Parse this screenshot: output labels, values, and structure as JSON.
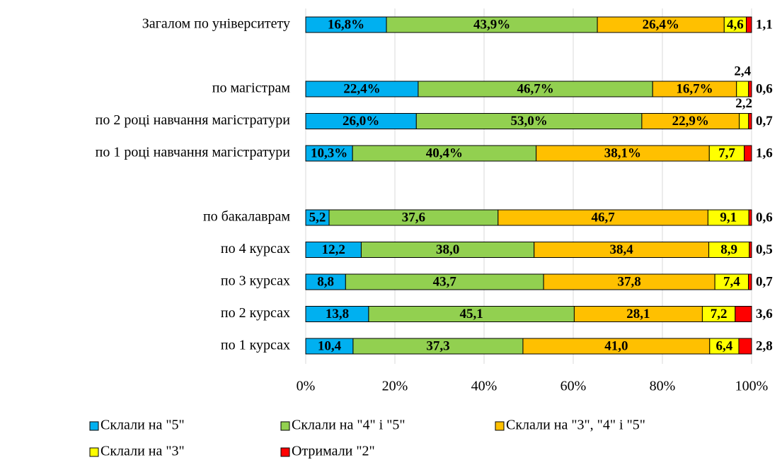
{
  "chart_data": {
    "type": "bar",
    "orientation": "horizontal",
    "stacking": "percent",
    "categories": [
      "Загалом по університету",
      null,
      "по магістрам",
      "по 2 році навчання магістратури",
      "по 1 році навчання магістратури",
      null,
      "по бакалаврам",
      "по 4 курсах",
      "по 3 курсах",
      "по 2 курсах",
      "по 1 курсах"
    ],
    "series": [
      {
        "name": "Склали на \"5\"",
        "color": "#00b0f0",
        "values": [
          16.8,
          null,
          22.4,
          26.0,
          10.3,
          null,
          5.2,
          12.2,
          8.8,
          13.8,
          10.4
        ],
        "value_labels": [
          "16,8%",
          null,
          "22,4%",
          "26,0%",
          "10,3%",
          null,
          "5,2",
          "12,2",
          "8,8",
          "13,8",
          "10,4"
        ]
      },
      {
        "name": "Склали на \"4\" і \"5\"",
        "color": "#92d050",
        "values": [
          43.9,
          null,
          46.7,
          53.0,
          40.4,
          null,
          37.6,
          38.0,
          43.7,
          45.1,
          37.3
        ],
        "value_labels": [
          "43,9%",
          null,
          "46,7%",
          "53,0%",
          "40,4%",
          null,
          "37,6",
          "38,0",
          "43,7",
          "45,1",
          "37,3"
        ]
      },
      {
        "name": "Склали на \"3\", \"4\" і \"5\"",
        "color": "#ffc000",
        "values": [
          26.4,
          null,
          16.7,
          22.9,
          38.1,
          null,
          46.7,
          38.4,
          37.8,
          28.1,
          41.0
        ],
        "value_labels": [
          "26,4%",
          null,
          "16,7%",
          "22,9%",
          "38,1%",
          null,
          "46,7",
          "38,4",
          "37,8",
          "28,1",
          "41,0"
        ]
      },
      {
        "name": "Склали на \"3\"",
        "color": "#ffff00",
        "values": [
          4.6,
          null,
          2.4,
          2.2,
          7.7,
          null,
          9.1,
          8.9,
          7.4,
          7.2,
          6.4
        ],
        "value_labels": [
          "4,6",
          null,
          "2,4",
          "2,2",
          "7,7",
          null,
          "9,1",
          "8,9",
          "7,4",
          "7,2",
          "6,4"
        ]
      },
      {
        "name": "Отримали \"2\"",
        "color": "#ff0000",
        "values": [
          1.1,
          null,
          0.6,
          0.7,
          1.6,
          null,
          0.6,
          0.5,
          0.7,
          3.6,
          2.8
        ],
        "value_labels": [
          "1,1",
          null,
          "0,6",
          "0,7",
          "1,6",
          null,
          "0,6",
          "0,5",
          "0,7",
          "3,6",
          "2,8"
        ]
      }
    ],
    "xlim": [
      0,
      100
    ],
    "xticks": [
      {
        "value": 0,
        "label": "0%"
      },
      {
        "value": 20,
        "label": "20%"
      },
      {
        "value": 40,
        "label": "40%"
      },
      {
        "value": 60,
        "label": "60%"
      },
      {
        "value": 80,
        "label": "80%"
      },
      {
        "value": 100,
        "label": "100%"
      }
    ],
    "grid": true,
    "legend": "bottom"
  }
}
